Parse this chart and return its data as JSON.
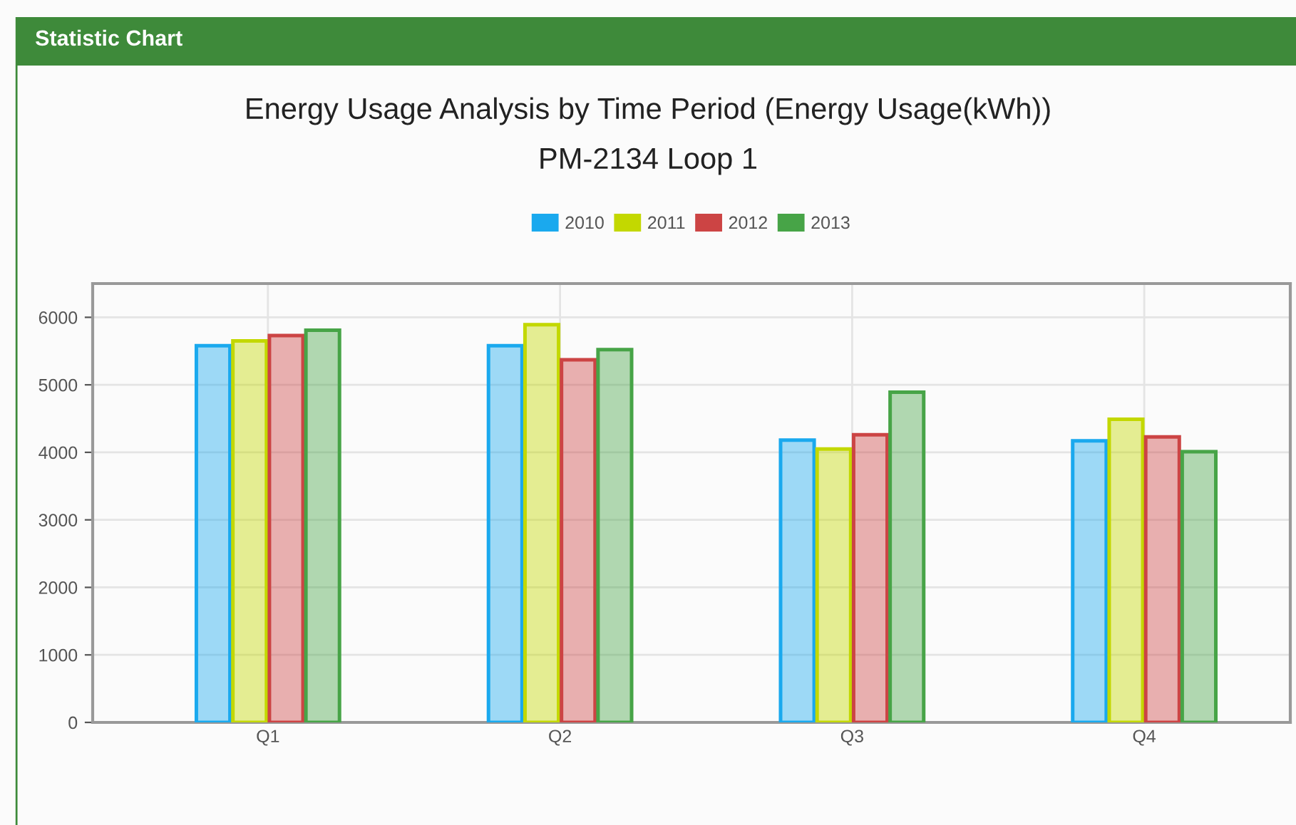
{
  "chart_data": {
    "type": "bar",
    "title": "Energy Usage Analysis by Time Period (Energy Usage(kWh))",
    "subtitle": "PM-2134 Loop 1",
    "annotations": [
      "Statistic Chart"
    ],
    "categories": [
      "Q1",
      "Q2",
      "Q3",
      "Q4"
    ],
    "series": [
      {
        "name": "2010",
        "color": "#1aa9ee",
        "values": [
          5580,
          5580,
          4180,
          4170
        ]
      },
      {
        "name": "2011",
        "color": "#c3d800",
        "values": [
          5650,
          5890,
          4050,
          4490
        ]
      },
      {
        "name": "2012",
        "color": "#cc4444",
        "values": [
          5730,
          5370,
          4260,
          4230
        ]
      },
      {
        "name": "2013",
        "color": "#47a447",
        "values": [
          5810,
          5520,
          4890,
          4010
        ]
      }
    ],
    "ylim": [
      0,
      6500
    ],
    "yticks": [
      0,
      1000,
      2000,
      3000,
      4000,
      5000,
      6000
    ],
    "grid": true,
    "legend": "top"
  }
}
